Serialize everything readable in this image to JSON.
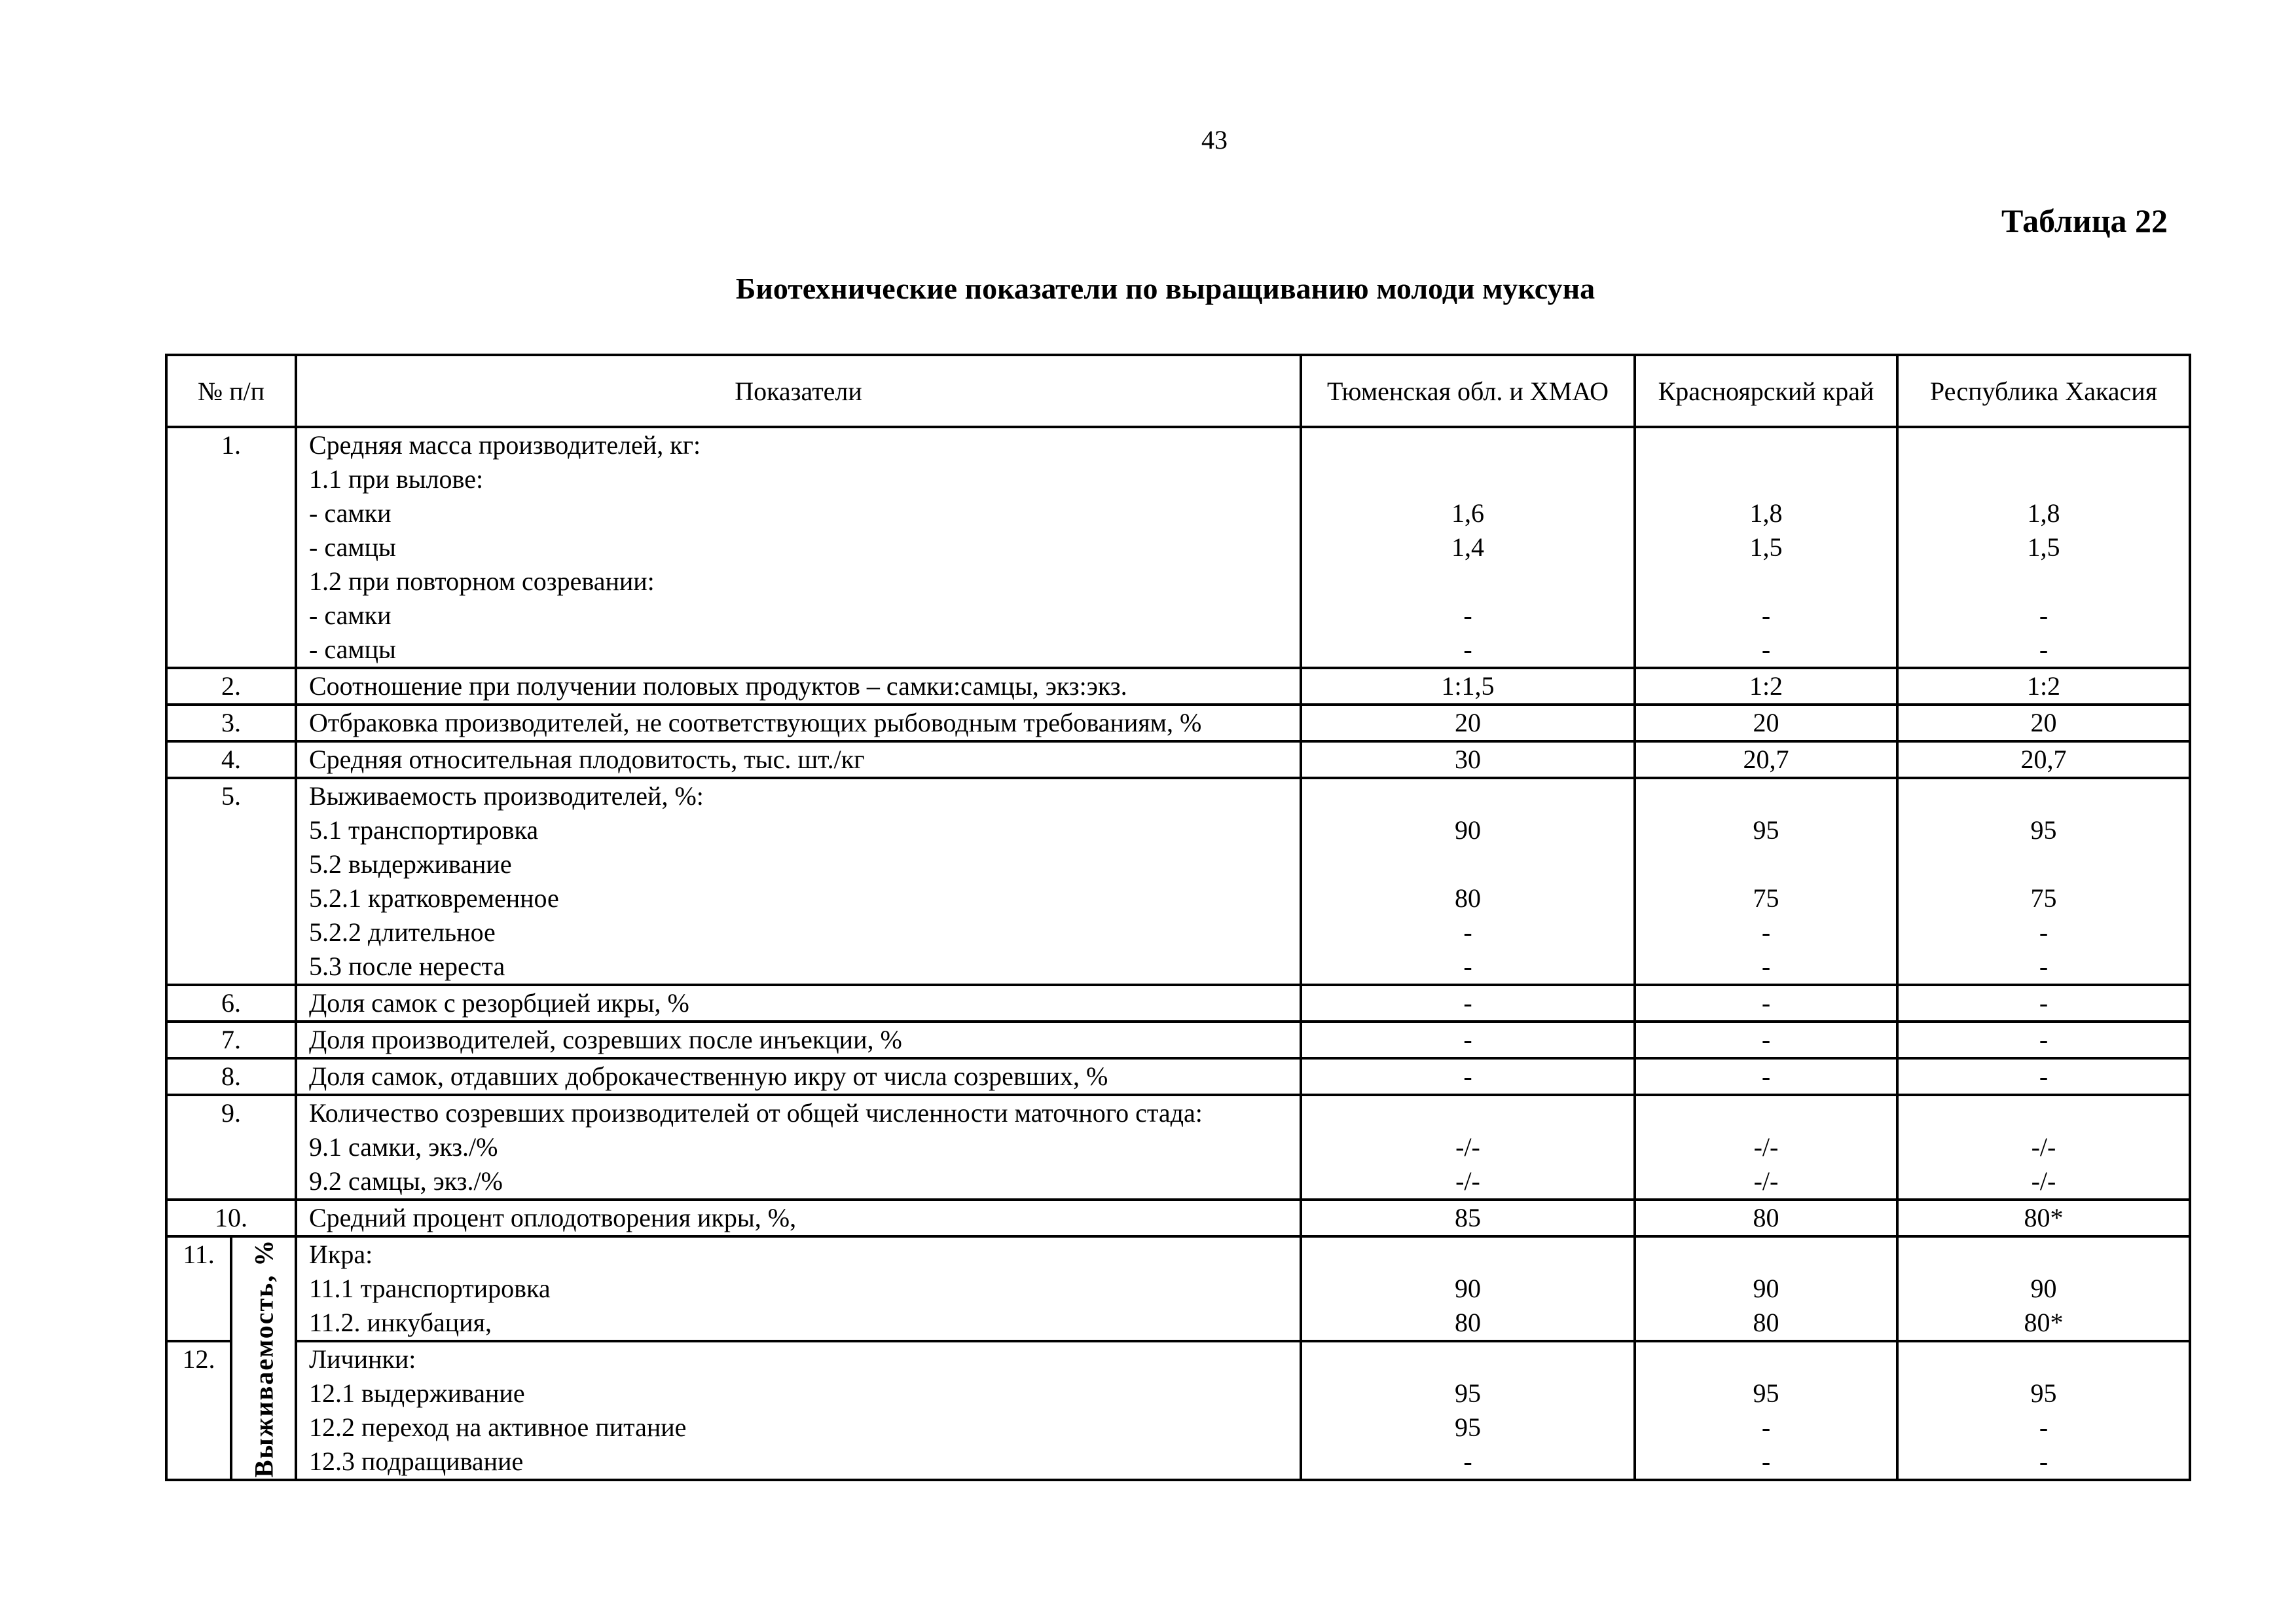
{
  "page_number": "43",
  "table_number": "Таблица 22",
  "title": "Биотехнические показатели по выращиванию молоди муксуна",
  "headers": [
    "№ п/п",
    "Показатели",
    "Тюменская обл. и ХМАО",
    "Красноярский край",
    "Республика Хакасия"
  ],
  "rotated_label": "Выживаемость, %",
  "rows": [
    {
      "num": "1.",
      "lines": [
        {
          "t": "Средняя масса производителей, кг:",
          "v": [
            "",
            "",
            ""
          ]
        },
        {
          "t": "1.1 при вылове:",
          "v": [
            "",
            "",
            ""
          ]
        },
        {
          "t": "- самки",
          "v": [
            "1,6",
            "1,8",
            "1,8"
          ]
        },
        {
          "t": "- самцы",
          "v": [
            "1,4",
            "1,5",
            "1,5"
          ]
        },
        {
          "t": "1.2 при повторном созревании:",
          "v": [
            "",
            "",
            ""
          ]
        },
        {
          "t": "- самки",
          "v": [
            "-",
            "-",
            "-"
          ]
        },
        {
          "t": "- самцы",
          "v": [
            "-",
            "-",
            "-"
          ]
        }
      ]
    },
    {
      "num": "2.",
      "lines": [
        {
          "t": "Соотношение при получении половых продуктов – самки:самцы, экз:экз.",
          "v": [
            "1:1,5",
            "1:2",
            "1:2"
          ]
        }
      ]
    },
    {
      "num": "3.",
      "lines": [
        {
          "t": "Отбраковка производителей, не соответствующих рыбоводным требованиям, %",
          "v": [
            "20",
            "20",
            "20"
          ]
        }
      ]
    },
    {
      "num": "4.",
      "lines": [
        {
          "t": "Средняя относительная плодовитость, тыс. шт./кг",
          "v": [
            "30",
            "20,7",
            "20,7"
          ]
        }
      ]
    },
    {
      "num": "5.",
      "lines": [
        {
          "t": "Выживаемость производителей, %:",
          "v": [
            "",
            "",
            ""
          ]
        },
        {
          "t": "5.1 транспортировка",
          "v": [
            "90",
            "95",
            "95"
          ]
        },
        {
          "t": "5.2 выдерживание",
          "v": [
            "",
            "",
            ""
          ]
        },
        {
          "t": "5.2.1 кратковременное",
          "v": [
            "80",
            "75",
            "75"
          ]
        },
        {
          "t": "5.2.2 длительное",
          "v": [
            "-",
            "-",
            "-"
          ]
        },
        {
          "t": "5.3 после нереста",
          "v": [
            "-",
            "-",
            "-"
          ]
        }
      ]
    },
    {
      "num": "6.",
      "lines": [
        {
          "t": "Доля самок с резорбцией икры, %",
          "v": [
            "-",
            "-",
            "-"
          ]
        }
      ]
    },
    {
      "num": "7.",
      "lines": [
        {
          "t": "Доля производителей, созревших после инъекции, %",
          "v": [
            "-",
            "-",
            "-"
          ]
        }
      ]
    },
    {
      "num": "8.",
      "lines": [
        {
          "t": "Доля самок, отдавших доброкачественную икру от числа созревших, %",
          "v": [
            "-",
            "-",
            "-"
          ]
        }
      ]
    },
    {
      "num": "9.",
      "lines": [
        {
          "t": "Количество созревших производителей от общей численности маточного стада:",
          "v": [
            "",
            "",
            ""
          ]
        },
        {
          "t": "9.1 самки, экз./%",
          "v": [
            "-/-",
            "-/-",
            "-/-"
          ]
        },
        {
          "t": "9.2 самцы, экз./%",
          "v": [
            "-/-",
            "-/-",
            "-/-"
          ]
        }
      ]
    },
    {
      "num": "10.",
      "lines": [
        {
          "t": "Средний процент оплодотворения икры, %,",
          "v": [
            "85",
            "80",
            "80*"
          ]
        }
      ]
    },
    {
      "num": "11.",
      "lines": [
        {
          "t": "Икра:",
          "v": [
            "",
            "",
            ""
          ]
        },
        {
          "t": "11.1 транспортировка",
          "v": [
            "90",
            "90",
            "90"
          ]
        },
        {
          "t": "11.2. инкубация,",
          "v": [
            "80",
            "80",
            "80*"
          ]
        }
      ]
    },
    {
      "num": "12.",
      "lines": [
        {
          "t": "Личинки:",
          "v": [
            "",
            "",
            ""
          ]
        },
        {
          "t": "12.1 выдерживание",
          "v": [
            "95",
            "95",
            "95"
          ]
        },
        {
          "t": "12.2 переход на активное питание",
          "v": [
            "95",
            "-",
            "-"
          ]
        },
        {
          "t": "12.3 подращивание",
          "v": [
            "-",
            "-",
            "-"
          ]
        }
      ]
    }
  ]
}
